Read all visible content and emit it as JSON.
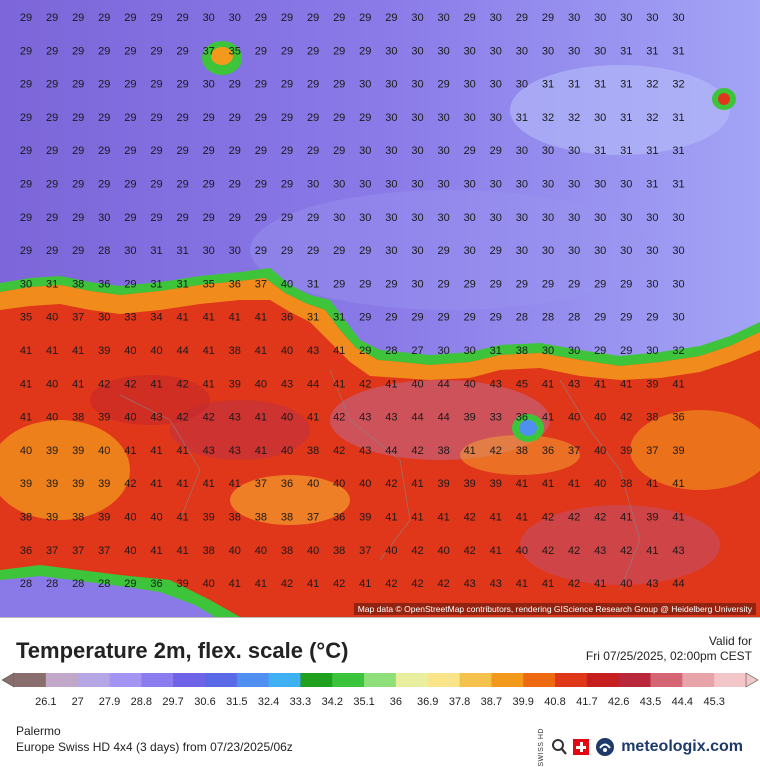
{
  "map": {
    "attribution": "Map data © OpenStreetMap contributors, rendering GIScience Research Group @ Heidelberg University",
    "grid_values": [
      [
        29,
        29,
        29,
        29,
        29,
        29,
        29,
        30,
        30,
        29,
        29,
        29,
        29,
        29,
        29,
        30,
        30,
        29,
        30,
        29,
        29,
        30,
        30,
        30,
        30,
        30
      ],
      [
        29,
        29,
        29,
        29,
        29,
        29,
        29,
        37,
        35,
        29,
        29,
        29,
        29,
        29,
        30,
        30,
        30,
        30,
        30,
        30,
        30,
        30,
        30,
        31,
        31,
        31
      ],
      [
        29,
        29,
        29,
        29,
        29,
        29,
        29,
        30,
        29,
        29,
        29,
        29,
        29,
        30,
        30,
        30,
        29,
        30,
        30,
        30,
        31,
        31,
        31,
        31,
        32,
        32
      ],
      [
        29,
        29,
        29,
        29,
        29,
        29,
        29,
        29,
        29,
        29,
        29,
        29,
        29,
        29,
        30,
        30,
        30,
        30,
        30,
        31,
        32,
        32,
        30,
        31,
        32,
        31
      ],
      [
        29,
        29,
        29,
        29,
        29,
        29,
        29,
        29,
        29,
        29,
        29,
        29,
        29,
        30,
        30,
        30,
        30,
        29,
        29,
        30,
        30,
        30,
        31,
        31,
        31,
        31
      ],
      [
        29,
        29,
        29,
        29,
        29,
        29,
        29,
        29,
        29,
        29,
        29,
        30,
        30,
        30,
        30,
        30,
        30,
        30,
        30,
        30,
        30,
        30,
        30,
        30,
        31,
        31
      ],
      [
        29,
        29,
        29,
        30,
        29,
        29,
        29,
        29,
        29,
        29,
        29,
        29,
        30,
        30,
        30,
        30,
        30,
        30,
        30,
        30,
        30,
        30,
        30,
        30,
        30,
        30
      ],
      [
        29,
        29,
        29,
        28,
        30,
        31,
        31,
        30,
        30,
        29,
        29,
        29,
        29,
        29,
        30,
        30,
        29,
        30,
        29,
        30,
        30,
        30,
        30,
        30,
        30,
        30
      ],
      [
        30,
        31,
        38,
        36,
        29,
        31,
        31,
        35,
        36,
        37,
        40,
        31,
        29,
        29,
        29,
        30,
        29,
        29,
        29,
        29,
        29,
        29,
        29,
        29,
        30,
        30
      ],
      [
        35,
        40,
        37,
        30,
        33,
        34,
        41,
        41,
        41,
        41,
        36,
        31,
        31,
        29,
        29,
        29,
        29,
        29,
        29,
        28,
        28,
        28,
        29,
        29,
        29,
        30
      ],
      [
        41,
        41,
        41,
        39,
        40,
        40,
        44,
        41,
        38,
        41,
        40,
        43,
        41,
        29,
        28,
        27,
        30,
        30,
        31,
        38,
        30,
        30,
        29,
        29,
        30,
        32
      ],
      [
        41,
        40,
        41,
        42,
        42,
        41,
        42,
        41,
        39,
        40,
        43,
        44,
        41,
        42,
        41,
        40,
        44,
        40,
        43,
        45,
        41,
        43,
        41,
        41,
        39,
        41
      ],
      [
        41,
        40,
        38,
        39,
        40,
        43,
        42,
        42,
        43,
        41,
        40,
        41,
        42,
        43,
        43,
        44,
        44,
        39,
        33,
        36,
        41,
        40,
        40,
        42,
        38,
        36
      ],
      [
        40,
        39,
        39,
        40,
        41,
        41,
        41,
        43,
        43,
        41,
        40,
        38,
        42,
        43,
        44,
        42,
        38,
        41,
        42,
        38,
        36,
        37,
        40,
        39,
        37,
        39
      ],
      [
        39,
        39,
        39,
        39,
        42,
        41,
        41,
        41,
        41,
        37,
        36,
        40,
        40,
        40,
        42,
        41,
        39,
        39,
        39,
        41,
        41,
        41,
        40,
        38,
        41,
        41
      ],
      [
        38,
        39,
        38,
        39,
        40,
        40,
        41,
        39,
        38,
        38,
        38,
        37,
        36,
        39,
        41,
        41,
        41,
        42,
        41,
        41,
        42,
        42,
        42,
        41,
        39,
        41
      ],
      [
        36,
        37,
        37,
        37,
        40,
        41,
        41,
        38,
        40,
        40,
        38,
        40,
        38,
        37,
        40,
        42,
        40,
        42,
        41,
        40,
        42,
        42,
        43,
        42,
        41,
        43
      ],
      [
        28,
        28,
        28,
        28,
        29,
        36,
        39,
        40,
        41,
        41,
        42,
        41,
        42,
        41,
        42,
        42,
        42,
        43,
        43,
        41,
        41,
        42,
        41,
        40,
        43,
        44
      ]
    ]
  },
  "legend": {
    "title": "Temperature 2m, flex. scale (°C)",
    "valid_label": "Valid for",
    "valid_time": "Fri 07/25/2025, 02:00pm CEST",
    "tick_labels": [
      "26.1",
      "27",
      "27.9",
      "28.8",
      "29.7",
      "30.6",
      "31.5",
      "32.4",
      "33.3",
      "34.2",
      "35.1",
      "36",
      "36.9",
      "37.8",
      "38.7",
      "39.9",
      "40.8",
      "41.7",
      "42.6",
      "43.5",
      "44.4",
      "45.3"
    ],
    "scale_colors": [
      "#8a6d6d",
      "#c2a8c8",
      "#b7a6e6",
      "#a495f2",
      "#8b7cf0",
      "#6f63e8",
      "#5a6ae6",
      "#4f8fef",
      "#3fb1f2",
      "#1fa01e",
      "#3cc43a",
      "#8fe07a",
      "#e8f0a0",
      "#f9e48a",
      "#f6c24e",
      "#f39a1c",
      "#ee6a12",
      "#e0361a",
      "#c41e1e",
      "#b8283a",
      "#d56575",
      "#e6a3a8",
      "#f2c6c8"
    ],
    "location": "Palermo",
    "model_info": "Europe Swiss HD 4x4 (3 days) from 07/23/2025/06z",
    "brand_name": "meteologix.com",
    "swiss_hd_text": "SWISS HD"
  }
}
